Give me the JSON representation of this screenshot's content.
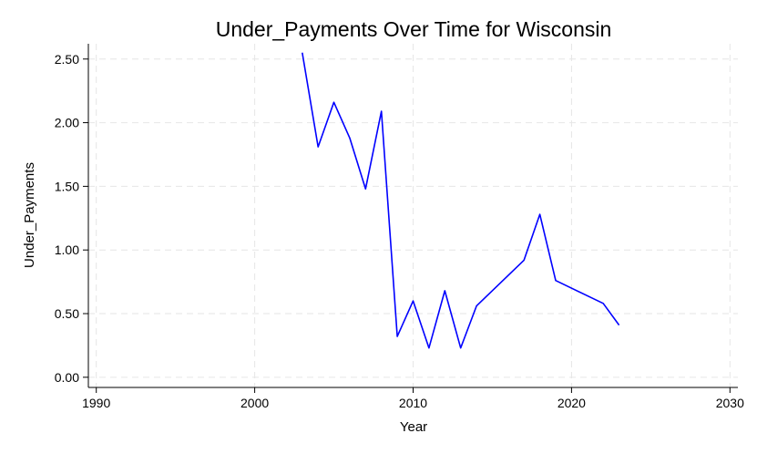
{
  "chart_data": {
    "type": "line",
    "title": "Under_Payments Over Time for Wisconsin",
    "xlabel": "Year",
    "ylabel": "Under_Payments",
    "xlim": [
      1989.5,
      2030.5
    ],
    "ylim": [
      -0.08,
      2.62
    ],
    "xticks": [
      1990,
      2000,
      2010,
      2020,
      2030
    ],
    "xtick_labels": [
      "1990",
      "2000",
      "2010",
      "2020",
      "2030"
    ],
    "yticks": [
      0,
      0.5,
      1,
      1.5,
      2,
      2.5
    ],
    "ytick_labels": [
      "0.00",
      "0.50",
      "1.00",
      "1.50",
      "2.00",
      "2.50"
    ],
    "grid": true,
    "color": "#0000ff",
    "series": [
      {
        "x": [
          2003,
          2004,
          2005,
          2006,
          2007,
          2008,
          2009,
          2010,
          2011,
          2012,
          2013,
          2014,
          2017,
          2018,
          2019,
          2022,
          2023
        ],
        "values": [
          2.55,
          1.81,
          2.16,
          1.88,
          1.48,
          2.09,
          0.32,
          0.6,
          0.23,
          0.68,
          0.23,
          0.56,
          0.92,
          1.28,
          0.76,
          0.58,
          0.41
        ]
      }
    ]
  }
}
